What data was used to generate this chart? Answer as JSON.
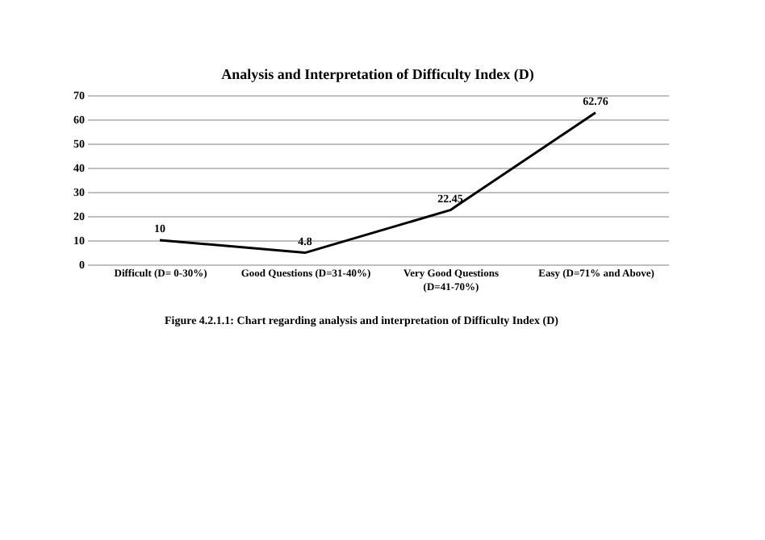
{
  "chart_data": {
    "type": "line",
    "title": "Analysis and Interpretation of Difficulty Index (D)",
    "categories": [
      "Difficult (D= 0-30%)",
      "Good Questions (D=31-40%)",
      "Very Good Questions (D=41-70%)",
      "Easy (D=71% and Above)"
    ],
    "series": [
      {
        "color": "#000000",
        "values": [
          10,
          4.8,
          22.45,
          62.76
        ]
      }
    ],
    "ylim": [
      0,
      70
    ],
    "yticks": [
      0,
      10,
      20,
      30,
      40,
      50,
      60,
      70
    ],
    "grid": "y",
    "data_labels": true,
    "legend": false,
    "marker": "none",
    "line_style": "solid",
    "annotations": [
      "Figure 4.2.1.1:    Chart regarding analysis and interpretation of Difficulty Index (D)"
    ]
  }
}
